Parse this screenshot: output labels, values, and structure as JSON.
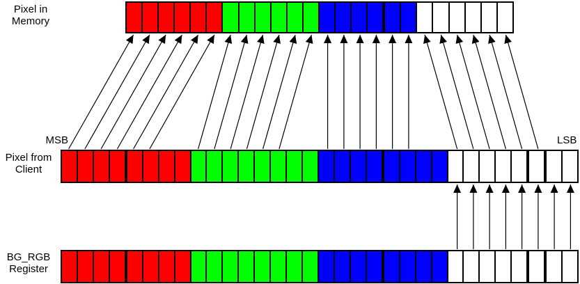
{
  "labels": {
    "memory_row": "Pixel in\nMemory",
    "client_row": "Pixel from\nClient",
    "register_row": "BG_RGB\nRegister",
    "msb": "MSB",
    "lsb": "LSB"
  },
  "colors": {
    "red": "#ff0000",
    "green": "#00ff00",
    "blue": "#0000ff",
    "white": "#ffffff",
    "border": "#000000",
    "background": "#ffffff",
    "arrow": "#000000"
  },
  "rows": [
    {
      "id": "memory",
      "label": "Pixel in Memory",
      "bits": 24,
      "groups": [
        {
          "color": "red",
          "bits": 6
        },
        {
          "color": "green",
          "bits": 6
        },
        {
          "color": "blue",
          "bits": 6
        },
        {
          "color": "white",
          "bits": 6
        }
      ],
      "thick_after": [
        16
      ]
    },
    {
      "id": "client",
      "label": "Pixel from Client",
      "bits": 32,
      "groups": [
        {
          "color": "red",
          "bits": 8
        },
        {
          "color": "green",
          "bits": 8
        },
        {
          "color": "blue",
          "bits": 8
        },
        {
          "color": "white",
          "bits": 8
        }
      ],
      "thick_after": [
        4,
        20,
        29,
        30
      ]
    },
    {
      "id": "register",
      "label": "BG_RGB Register",
      "bits": 32,
      "groups": [
        {
          "color": "red",
          "bits": 8
        },
        {
          "color": "green",
          "bits": 8
        },
        {
          "color": "blue",
          "bits": 8
        },
        {
          "color": "white",
          "bits": 8
        }
      ],
      "thick_after": [
        4,
        20,
        29,
        30
      ]
    }
  ],
  "arrows": [
    {
      "name": "client-red-to-memory",
      "from_row": "client",
      "from_cells": [
        1,
        2,
        3,
        4,
        5,
        6
      ],
      "to_row": "memory",
      "to_cells": [
        1,
        2,
        3,
        4,
        5,
        6
      ]
    },
    {
      "name": "client-green-to-memory",
      "from_row": "client",
      "from_cells": [
        9,
        10,
        11,
        12,
        13,
        14
      ],
      "to_row": "memory",
      "to_cells": [
        7,
        8,
        9,
        10,
        11,
        12
      ]
    },
    {
      "name": "client-blue-to-memory",
      "from_row": "client",
      "from_cells": [
        17,
        18,
        19,
        20,
        21,
        22
      ],
      "to_row": "memory",
      "to_cells": [
        13,
        14,
        15,
        16,
        17,
        18
      ]
    },
    {
      "name": "client-pad-to-memory",
      "from_row": "client",
      "from_cells": [
        25,
        26,
        27,
        28,
        29,
        30
      ],
      "to_row": "memory",
      "to_cells": [
        19,
        20,
        21,
        22,
        23,
        24
      ]
    },
    {
      "name": "register-pad-to-client",
      "from_row": "register",
      "from_cells": [
        25,
        26,
        27,
        28,
        29,
        30,
        31,
        32
      ],
      "to_row": "client",
      "to_cells": [
        25,
        26,
        27,
        28,
        29,
        30,
        31,
        32
      ]
    }
  ]
}
